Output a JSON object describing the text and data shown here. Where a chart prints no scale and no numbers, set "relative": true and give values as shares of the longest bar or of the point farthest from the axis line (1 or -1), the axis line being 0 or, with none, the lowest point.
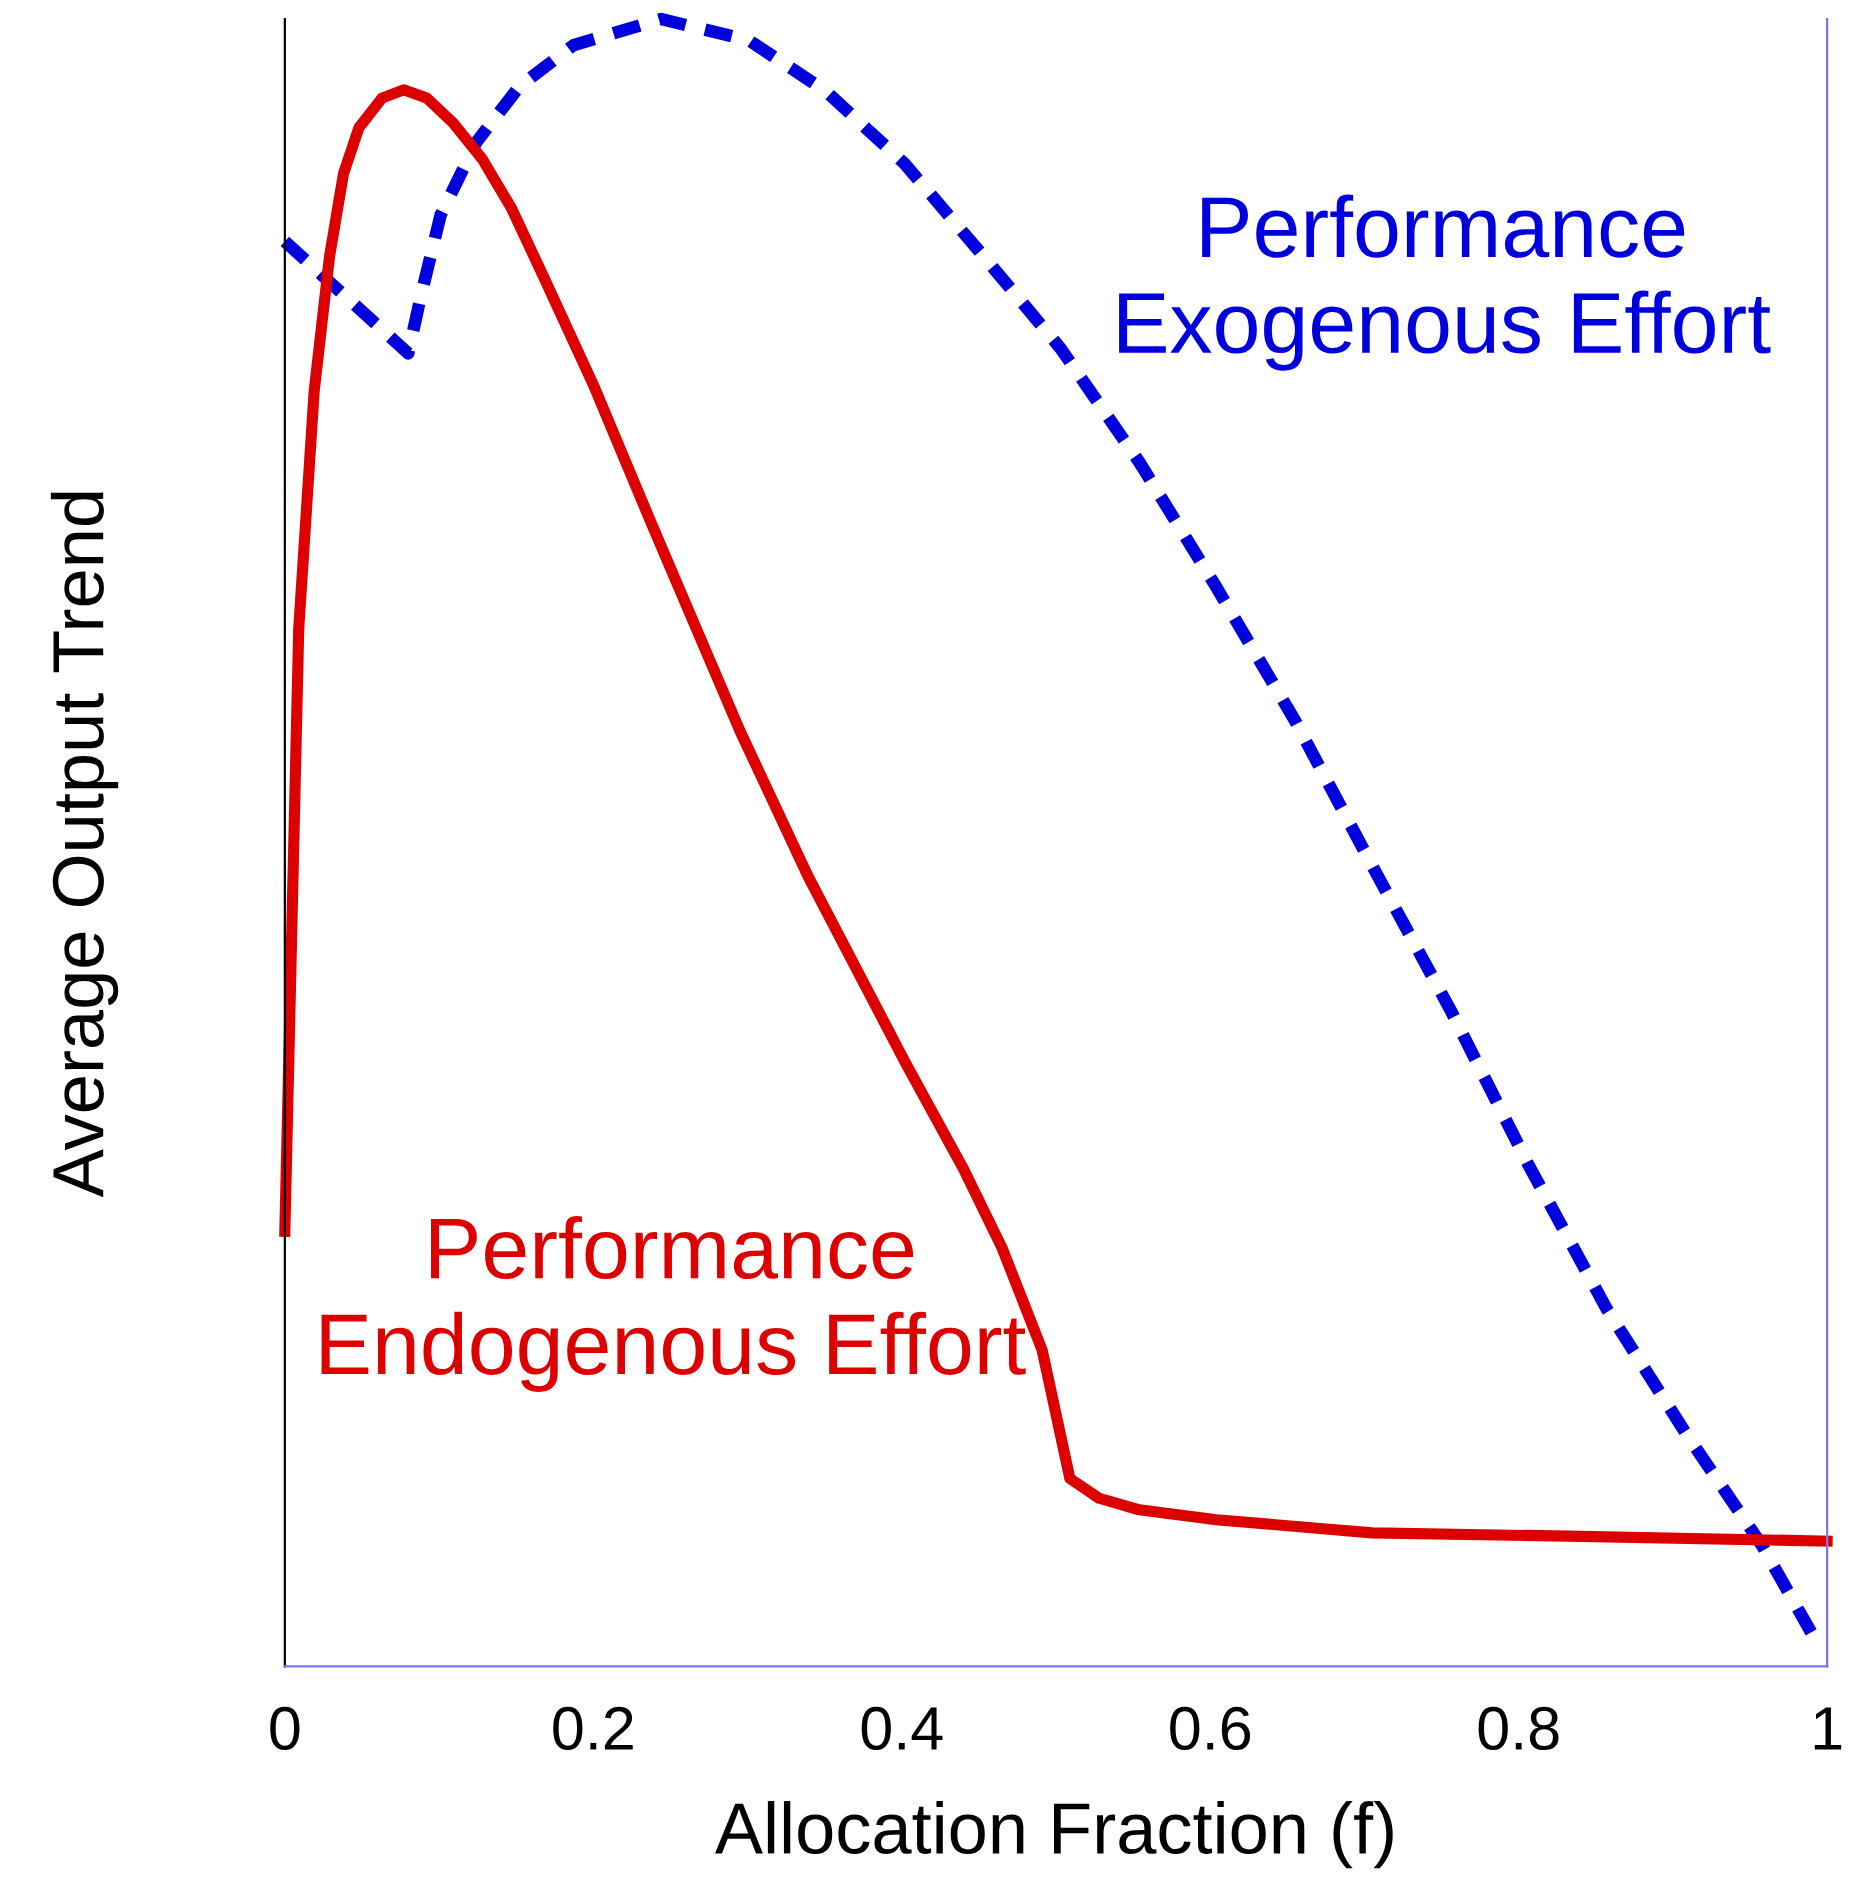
{
  "chart_data": {
    "type": "line",
    "xlabel": "Allocation Fraction (f)",
    "ylabel": "Average Output Trend",
    "relative": true,
    "xlim": [
      0,
      1
    ],
    "xticks": [
      0,
      0.2,
      0.4,
      0.6,
      0.8,
      1
    ],
    "grid": false,
    "legend": false,
    "marker": "none",
    "series": [
      {
        "name": "Performance\nExogenous Effort",
        "color": "#0000dd",
        "line_style": "dashed",
        "x": [
          0,
          0.08,
          0.088,
          0.101,
          0.124,
          0.152,
          0.187,
          0.244,
          0.301,
          0.351,
          0.402,
          0.453,
          0.503,
          0.554,
          0.604,
          0.655,
          0.705,
          0.756,
          0.806,
          0.857,
          0.908,
          0.958,
          0.996
        ],
        "values": [
          0.865,
          0.797,
          0.831,
          0.881,
          0.925,
          0.959,
          0.984,
          1.0,
          0.987,
          0.956,
          0.912,
          0.856,
          0.8,
          0.731,
          0.655,
          0.574,
          0.486,
          0.398,
          0.305,
          0.217,
          0.142,
          0.073,
          0.01
        ]
      },
      {
        "name": "Performance\nEndogenous Effort",
        "color": "#dd0000",
        "line_style": "solid",
        "x": [
          0,
          0.009,
          0.019,
          0.029,
          0.038,
          0.048,
          0.063,
          0.077,
          0.092,
          0.109,
          0.128,
          0.147,
          0.168,
          0.2,
          0.238,
          0.295,
          0.339,
          0.402,
          0.44,
          0.465,
          0.491,
          0.509,
          0.528,
          0.554,
          0.604,
          0.705,
          0.832,
          1.0
        ],
        "values": [
          0.264,
          0.63,
          0.774,
          0.856,
          0.906,
          0.934,
          0.952,
          0.957,
          0.952,
          0.937,
          0.915,
          0.885,
          0.843,
          0.778,
          0.693,
          0.568,
          0.48,
          0.367,
          0.302,
          0.254,
          0.192,
          0.114,
          0.102,
          0.095,
          0.089,
          0.081,
          0.079,
          0.076
        ]
      }
    ]
  }
}
